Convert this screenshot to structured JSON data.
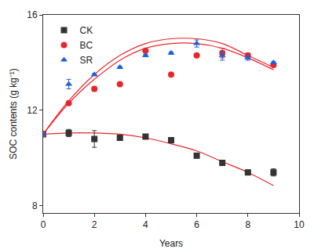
{
  "chart_data": {
    "type": "scatter",
    "x_label": "Years",
    "y_label": "SOC contents (g kg⁻¹)",
    "x": [
      0,
      1,
      2,
      3,
      4,
      5,
      6,
      7,
      8,
      9
    ],
    "series": [
      {
        "name": "CK",
        "color": "#333333",
        "marker": "square",
        "values": [
          11.0,
          11.05,
          10.8,
          10.85,
          10.9,
          10.75,
          10.1,
          9.8,
          9.4,
          9.4
        ],
        "error": [
          0.05,
          0.15,
          0.35,
          0.05,
          0.05,
          0.05,
          0.05,
          0.05,
          0.05,
          0.15
        ],
        "fit": [
          11.0,
          11.05,
          11.05,
          11.0,
          10.85,
          10.6,
          10.3,
          9.85,
          9.4,
          8.85
        ]
      },
      {
        "name": "BC",
        "color": "#e8262a",
        "marker": "circle",
        "values": [
          11.0,
          12.3,
          12.9,
          13.1,
          14.5,
          13.5,
          14.3,
          14.4,
          14.3,
          13.9
        ],
        "error": [
          0.05,
          0.05,
          0.1,
          0.05,
          0.05,
          0.05,
          0.05,
          0.2,
          0.1,
          0.05
        ],
        "fit": [
          11.0,
          12.3,
          13.3,
          14.1,
          14.6,
          14.8,
          14.8,
          14.6,
          14.2,
          13.7
        ]
      },
      {
        "name": "SR",
        "color": "#1f5fd6",
        "marker": "triangle-up",
        "values": [
          11.0,
          13.1,
          13.5,
          13.8,
          14.3,
          14.4,
          14.8,
          14.3,
          14.2,
          14.0
        ],
        "error": [
          0.05,
          0.2,
          0.05,
          0.05,
          0.05,
          0.05,
          0.15,
          0.2,
          0.1,
          0.05
        ],
        "fit": [
          11.0,
          12.4,
          13.5,
          14.3,
          14.8,
          15.0,
          15.0,
          14.8,
          14.3,
          13.8
        ]
      }
    ],
    "xlim": [
      0,
      10
    ],
    "xticks": [
      0,
      2,
      4,
      6,
      8,
      10
    ],
    "ylim": [
      7.7,
      16
    ],
    "yticks": [
      8,
      12,
      16
    ],
    "legend": "top-left",
    "grid": false
  }
}
